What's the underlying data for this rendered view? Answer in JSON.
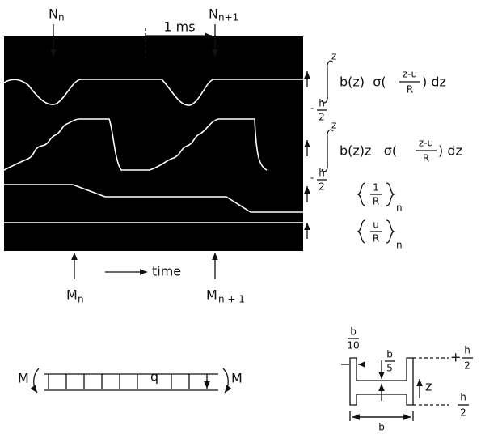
{
  "oscillogram": {
    "top_left": {
      "base": "N",
      "sub": "n"
    },
    "top_right": {
      "base": "N",
      "sub": "n+1"
    },
    "interval": "1 ms",
    "axis": "time",
    "bottom_left": {
      "base": "M",
      "sub": "n"
    },
    "bottom_right": {
      "base": "M",
      "sub": "n + 1"
    }
  },
  "formulas": [
    {
      "upper": "z",
      "lower_sign": "-",
      "lower_num": "h",
      "lower_den": "2",
      "before": "b(z)  σ(",
      "num": "z-u",
      "den": "R",
      "after": ") dz"
    },
    {
      "upper": "z",
      "lower_sign": "-",
      "lower_num": "h",
      "lower_den": "2",
      "before": "b(z)z   σ(",
      "num": "z-u",
      "den": "R",
      "after": ") dz"
    },
    {
      "num": "1",
      "den": "R",
      "sub": "n"
    },
    {
      "num": "u",
      "den": "R",
      "sub": "n"
    }
  ],
  "beam": {
    "moment_left": "M",
    "load": "q",
    "moment_right": "M"
  },
  "section": {
    "flange_num": "b",
    "flange_den": "10",
    "web_num": "b",
    "web_den": "5",
    "top_sign": "+",
    "top_num": "h",
    "top_den": "2",
    "axis": "z",
    "bottom_num": "h",
    "bottom_den": "2",
    "width": "b"
  }
}
